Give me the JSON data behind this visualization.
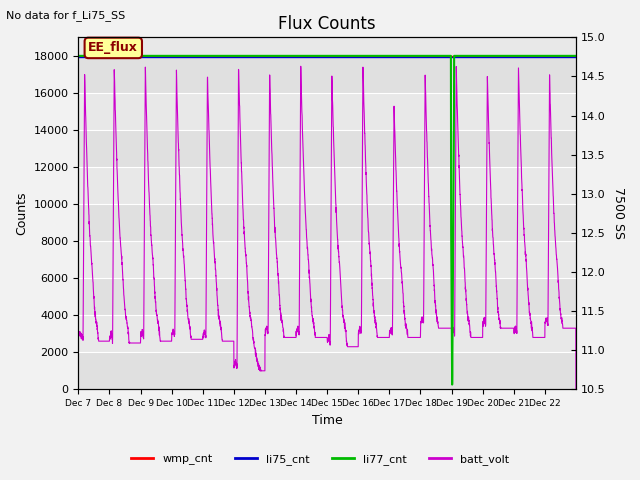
{
  "title": "Flux Counts",
  "top_left_text": "No data for f_Li75_SS",
  "xlabel": "Time",
  "ylabel_left": "Counts",
  "ylabel_right": "7500 SS",
  "annotation_box": "EE_flux",
  "ylim_left": [
    0,
    19000
  ],
  "ylim_right": [
    10.5,
    15.0
  ],
  "yticks_left": [
    0,
    2000,
    4000,
    6000,
    8000,
    10000,
    12000,
    14000,
    16000,
    18000
  ],
  "yticks_right": [
    10.5,
    11.0,
    11.5,
    12.0,
    12.5,
    13.0,
    13.5,
    14.0,
    14.5,
    15.0
  ],
  "xtick_labels": [
    "Dec 7",
    "Dec 8",
    "Dec 9",
    "Dec 10",
    "Dec 11",
    "Dec 12",
    "Dec 13",
    "Dec 14",
    "Dec 15",
    "Dec 16",
    "Dec 17",
    "Dec 18",
    "Dec 19",
    "Dec 20",
    "Dec 21",
    "Dec 22"
  ],
  "bg_color": "#f2f2f2",
  "plot_bg_color": "#e8e8e8",
  "wmp_color": "#ff0000",
  "li75_color": "#0000cc",
  "li77_color": "#00bb00",
  "batt_color": "#cc00cc",
  "num_days": 16,
  "figsize": [
    6.4,
    4.8
  ],
  "dpi": 100
}
